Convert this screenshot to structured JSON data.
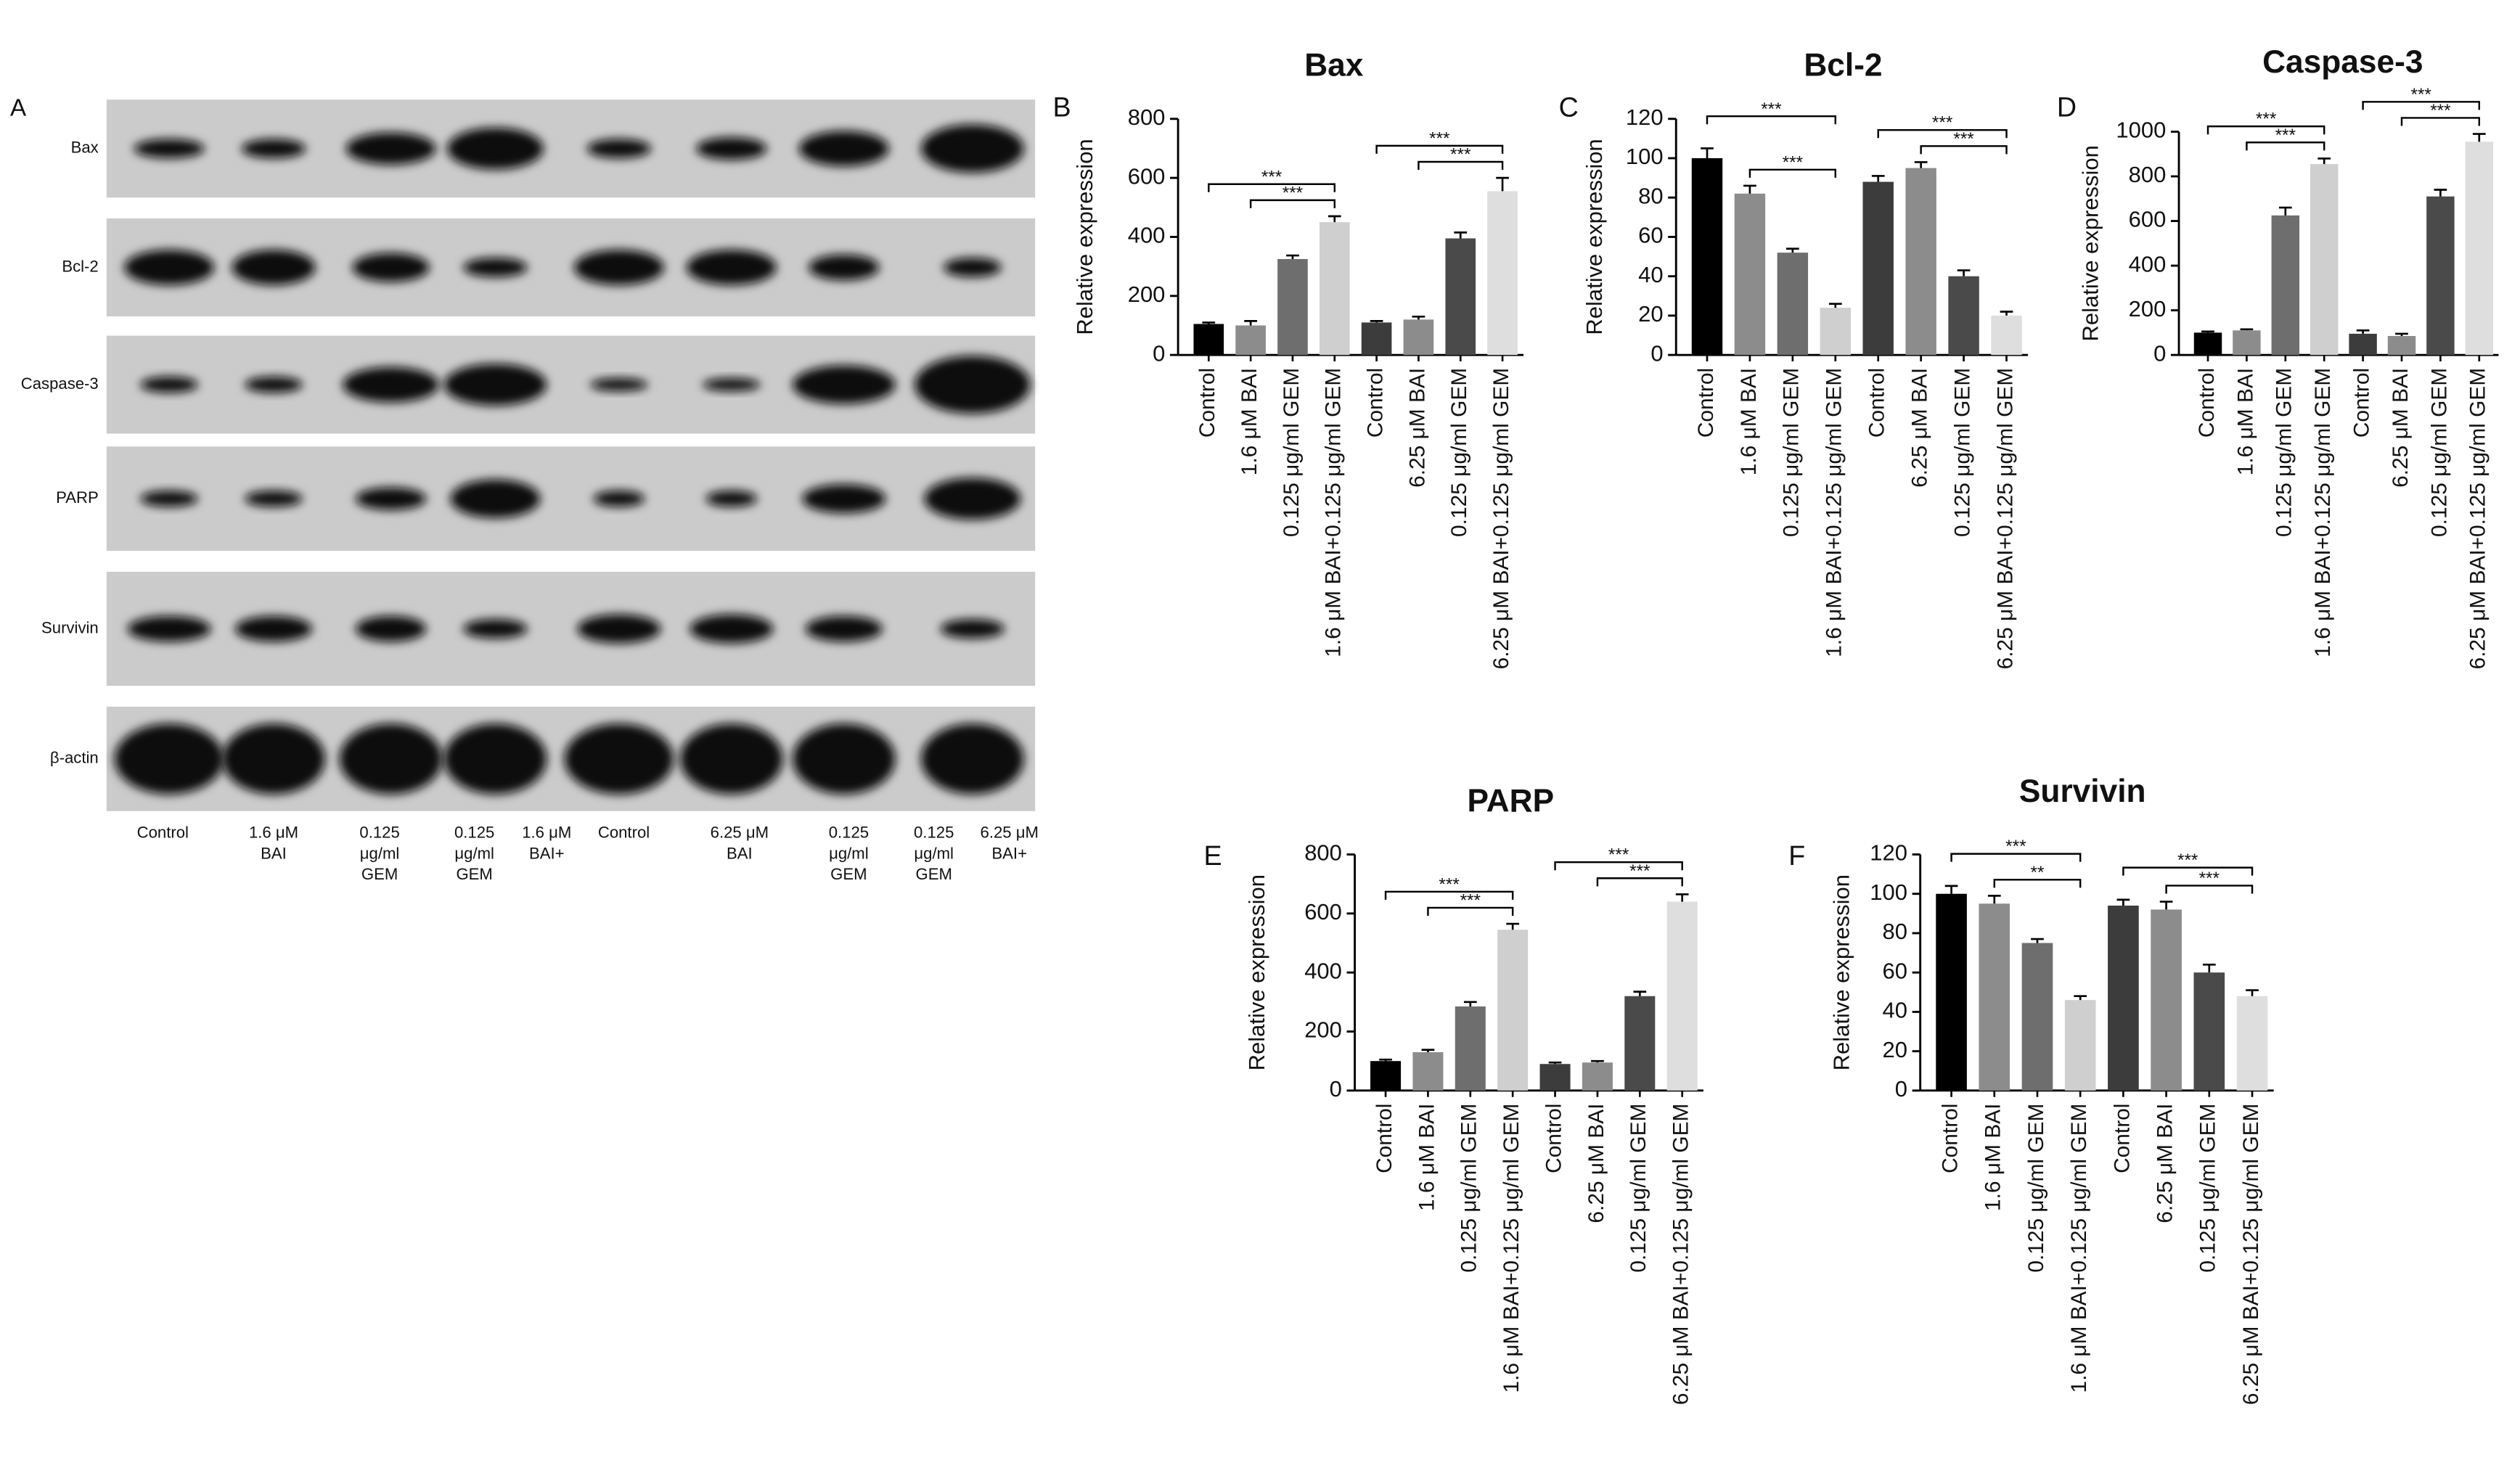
{
  "blot": {
    "panel": "A",
    "rows": [
      "Bax",
      "Bcl-2",
      "Caspase-3",
      "PARP",
      "Survivin",
      "β-actin"
    ],
    "lanes": [
      [
        "Control"
      ],
      [
        "1.6 μM",
        "BAI"
      ],
      [
        "0.125",
        "μg/ml",
        "GEM"
      ],
      [
        "0.125",
        "μg/ml",
        "GEM"
      ],
      [
        "1.6 μM",
        "BAI+"
      ],
      [
        "Control"
      ],
      [
        "6.25 μM",
        "BAI"
      ],
      [
        "0.125",
        "μg/ml",
        "GEM"
      ],
      [
        "0.125",
        "μg/ml",
        "GEM"
      ],
      [
        "6.25 μM",
        "BAI+"
      ]
    ]
  },
  "chart_data": [
    {
      "type": "bar",
      "panel": "B",
      "title": "Bax",
      "ylabel": "Relative expression",
      "categories": [
        "Control",
        "1.6 μM BAI",
        "0.125 μg/ml GEM",
        "1.6 μM BAI+0.125 μg/ml GEM",
        "Control",
        "6.25 μM BAI",
        "0.125 μg/ml GEM",
        "6.25 μM BAI+0.125 μg/ml GEM"
      ],
      "values": [
        105,
        100,
        325,
        450,
        110,
        120,
        395,
        555
      ],
      "errors": [
        5,
        15,
        12,
        20,
        5,
        10,
        20,
        45
      ],
      "colors": [
        "#000000",
        "#8c8c8c",
        "#6e6e6e",
        "#cfcfcf",
        "#3c3c3c",
        "#8c8c8c",
        "#4a4a4a",
        "#dedede"
      ],
      "ylim": [
        0,
        800
      ],
      "yticks": [
        0,
        200,
        400,
        600,
        800
      ],
      "significance": [
        {
          "groups": [
            0,
            3
          ],
          "label": "***"
        },
        {
          "groups": [
            1,
            3
          ],
          "label": "***"
        },
        {
          "groups": [
            4,
            7
          ],
          "label": "***"
        },
        {
          "groups": [
            5,
            7
          ],
          "label": "***"
        }
      ]
    },
    {
      "type": "bar",
      "panel": "C",
      "title": "Bcl-2",
      "ylabel": "Relative expression",
      "categories": [
        "Control",
        "1.6 μM BAI",
        "0.125 μg/ml GEM",
        "1.6 μM BAI+0.125 μg/ml GEM",
        "Control",
        "6.25 μM BAI",
        "0.125 μg/ml GEM",
        "6.25 μM BAI+0.125 μg/ml GEM"
      ],
      "values": [
        100,
        82,
        52,
        24,
        88,
        95,
        40,
        20
      ],
      "errors": [
        5,
        4,
        2,
        2,
        3,
        3,
        3,
        2
      ],
      "colors": [
        "#000000",
        "#8c8c8c",
        "#6e6e6e",
        "#cfcfcf",
        "#3c3c3c",
        "#8c8c8c",
        "#4a4a4a",
        "#dedede"
      ],
      "ylim": [
        0,
        120
      ],
      "yticks": [
        0,
        20,
        40,
        60,
        80,
        100,
        120
      ],
      "significance": [
        {
          "groups": [
            0,
            3
          ],
          "label": "***"
        },
        {
          "groups": [
            1,
            3
          ],
          "label": "***"
        },
        {
          "groups": [
            4,
            7
          ],
          "label": "***"
        },
        {
          "groups": [
            5,
            7
          ],
          "label": "***"
        }
      ]
    },
    {
      "type": "bar",
      "panel": "D",
      "title": "Caspase-3",
      "ylabel": "Relative expression",
      "categories": [
        "Control",
        "1.6 μM BAI",
        "0.125 μg/ml GEM",
        "1.6 μM BAI+0.125 μg/ml GEM",
        "Control",
        "6.25 μM BAI",
        "0.125 μg/ml GEM",
        "6.25 μM BAI+0.125 μg/ml GEM"
      ],
      "values": [
        100,
        110,
        625,
        855,
        95,
        85,
        710,
        955
      ],
      "errors": [
        5,
        5,
        35,
        25,
        15,
        10,
        30,
        35
      ],
      "colors": [
        "#000000",
        "#8c8c8c",
        "#6e6e6e",
        "#cfcfcf",
        "#3c3c3c",
        "#8c8c8c",
        "#4a4a4a",
        "#dedede"
      ],
      "ylim": [
        0,
        1000
      ],
      "yticks": [
        0,
        200,
        400,
        600,
        800,
        1000
      ],
      "significance": [
        {
          "groups": [
            0,
            3
          ],
          "label": "***"
        },
        {
          "groups": [
            1,
            3
          ],
          "label": "***"
        },
        {
          "groups": [
            4,
            7
          ],
          "label": "***"
        },
        {
          "groups": [
            5,
            7
          ],
          "label": "***"
        }
      ]
    },
    {
      "type": "bar",
      "panel": "E",
      "title": "PARP",
      "ylabel": "Relative expression",
      "categories": [
        "Control",
        "1.6 μM BAI",
        "0.125 μg/ml GEM",
        "1.6 μM BAI+0.125 μg/ml GEM",
        "Control",
        "6.25 μM BAI",
        "0.125 μg/ml GEM",
        "6.25 μM BAI+0.125 μg/ml GEM"
      ],
      "values": [
        100,
        130,
        285,
        545,
        90,
        95,
        320,
        640
      ],
      "errors": [
        5,
        8,
        15,
        20,
        5,
        5,
        15,
        25
      ],
      "colors": [
        "#000000",
        "#8c8c8c",
        "#6e6e6e",
        "#cfcfcf",
        "#3c3c3c",
        "#8c8c8c",
        "#4a4a4a",
        "#dedede"
      ],
      "ylim": [
        0,
        800
      ],
      "yticks": [
        0,
        200,
        400,
        600,
        800
      ],
      "significance": [
        {
          "groups": [
            0,
            3
          ],
          "label": "***"
        },
        {
          "groups": [
            1,
            3
          ],
          "label": "***"
        },
        {
          "groups": [
            4,
            7
          ],
          "label": "***"
        },
        {
          "groups": [
            5,
            7
          ],
          "label": "***"
        }
      ]
    },
    {
      "type": "bar",
      "panel": "F",
      "title": "Survivin",
      "ylabel": "Relative expression",
      "categories": [
        "Control",
        "1.6 μM BAI",
        "0.125 μg/ml GEM",
        "1.6 μM BAI+0.125 μg/ml GEM",
        "Control",
        "6.25 μM BAI",
        "0.125 μg/ml GEM",
        "6.25 μM BAI+0.125 μg/ml GEM"
      ],
      "values": [
        100,
        95,
        75,
        46,
        94,
        92,
        60,
        48
      ],
      "errors": [
        4,
        4,
        2,
        2,
        3,
        4,
        4,
        3
      ],
      "colors": [
        "#000000",
        "#8c8c8c",
        "#6e6e6e",
        "#cfcfcf",
        "#3c3c3c",
        "#8c8c8c",
        "#4a4a4a",
        "#dedede"
      ],
      "ylim": [
        0,
        120
      ],
      "yticks": [
        0,
        20,
        40,
        60,
        80,
        100,
        120
      ],
      "significance": [
        {
          "groups": [
            0,
            3
          ],
          "label": "***"
        },
        {
          "groups": [
            1,
            3
          ],
          "label": "**"
        },
        {
          "groups": [
            4,
            7
          ],
          "label": "***"
        },
        {
          "groups": [
            5,
            7
          ],
          "label": "***"
        }
      ]
    }
  ]
}
